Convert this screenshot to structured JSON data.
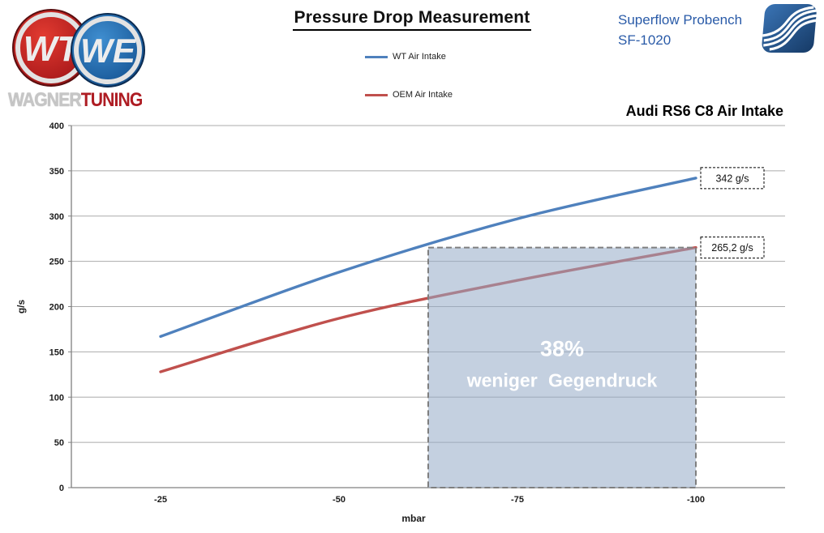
{
  "header": {
    "title": "Pressure Drop Measurement",
    "device": {
      "line1": "Superflow Probench",
      "line2": "SF-1020"
    },
    "chart_subtitle": "Audi RS6 C8 Air Intake",
    "brand": {
      "word1": "WAGNER",
      "word2": "TUNING",
      "emblem1": "WT",
      "emblem2": "WE"
    }
  },
  "legend": [
    {
      "label": "WT Air Intake",
      "color": "#4F81BD"
    },
    {
      "label": "OEM Air Intake",
      "color": "#C0504D"
    }
  ],
  "chart_data": {
    "type": "line",
    "x": [
      -25,
      -50,
      -75,
      -100
    ],
    "xticks": [
      "-25",
      "-50",
      "-75",
      "-100"
    ],
    "yticks": [
      "0",
      "50",
      "100",
      "150",
      "200",
      "250",
      "300",
      "350",
      "400"
    ],
    "series": [
      {
        "name": "WT Air Intake",
        "color": "#4F81BD",
        "values": [
          167,
          238,
          297,
          342
        ]
      },
      {
        "name": "OEM Air Intake",
        "color": "#C0504D",
        "values": [
          128,
          187,
          229,
          265.2
        ]
      }
    ],
    "xlabel": "mbar",
    "ylabel": "g/s",
    "ylim": [
      0,
      400
    ],
    "grid": "horizontal",
    "legend_position": "top-center",
    "gridline_color": "#ABABAB",
    "axis_color": "#808080",
    "annotations": {
      "end_labels": [
        {
          "series": "WT Air Intake",
          "text": "342 g/s"
        },
        {
          "series": "OEM Air Intake",
          "text": "265,2 g/s"
        }
      ],
      "region": {
        "x_start": -62.5,
        "x_end": -100,
        "y_top": 265.2,
        "y_bottom": 0,
        "fill": "#93A9C7",
        "border": "#7f7f7f",
        "line1": "38%",
        "line2": "weniger Gegendruck"
      }
    }
  }
}
